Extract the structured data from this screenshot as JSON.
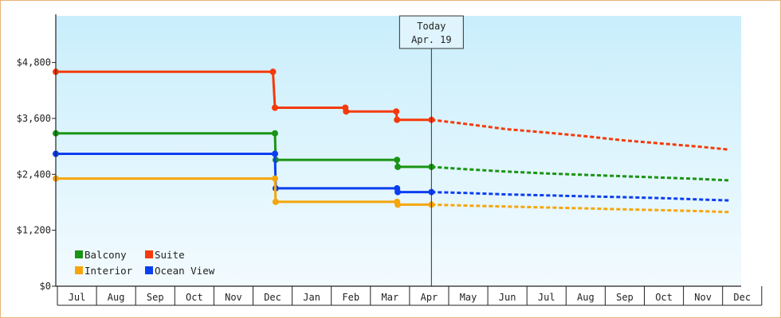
{
  "chart_data": {
    "type": "line",
    "step": true,
    "title": "",
    "xlabel": "",
    "ylabel": "",
    "ylim": [
      0,
      5800
    ],
    "y_ticks": [
      0,
      1200,
      2400,
      3600,
      4800
    ],
    "y_tick_labels": [
      "$0",
      "$1,200",
      "$2,400",
      "$3,600",
      "$4,800"
    ],
    "x_tick_labels": [
      "Jul",
      "Aug",
      "Sep",
      "Oct",
      "Nov",
      "Dec",
      "Jan",
      "Feb",
      "Mar",
      "Apr",
      "May",
      "Jun",
      "Jul",
      "Aug",
      "Sep",
      "Oct",
      "Nov",
      "Dec"
    ],
    "grid": false,
    "legend_position": "bottom-left",
    "today_marker": {
      "line1": "Today",
      "line2": "Apr. 19",
      "x": 9.6
    },
    "series": [
      {
        "name": "Suite",
        "color": "#f43a0a",
        "points": [
          [
            0,
            4600
          ],
          [
            5.55,
            4600
          ],
          [
            5.6,
            3830
          ],
          [
            7.4,
            3830
          ],
          [
            7.42,
            3750
          ],
          [
            8.7,
            3750
          ],
          [
            8.72,
            3570
          ],
          [
            9.6,
            3570
          ]
        ],
        "forecast": [
          [
            9.6,
            3570
          ],
          [
            10.6,
            3470
          ],
          [
            11.5,
            3370
          ],
          [
            12.5,
            3300
          ],
          [
            13.5,
            3220
          ],
          [
            14.5,
            3130
          ],
          [
            15.5,
            3060
          ],
          [
            16.5,
            2990
          ],
          [
            17.2,
            2930
          ]
        ]
      },
      {
        "name": "Balcony",
        "color": "#1a9414",
        "points": [
          [
            0,
            3280
          ],
          [
            5.6,
            3280
          ],
          [
            5.62,
            2710
          ],
          [
            8.72,
            2710
          ],
          [
            8.74,
            2560
          ],
          [
            9.6,
            2560
          ]
        ],
        "forecast": [
          [
            9.6,
            2560
          ],
          [
            10.5,
            2510
          ],
          [
            11.5,
            2460
          ],
          [
            12.5,
            2420
          ],
          [
            13.5,
            2390
          ],
          [
            14.5,
            2360
          ],
          [
            15.5,
            2330
          ],
          [
            16.5,
            2300
          ],
          [
            17.2,
            2270
          ]
        ]
      },
      {
        "name": "Ocean View",
        "color": "#0a3ef0",
        "points": [
          [
            0,
            2840
          ],
          [
            5.6,
            2840
          ],
          [
            5.62,
            2100
          ],
          [
            8.72,
            2100
          ],
          [
            8.74,
            2020
          ],
          [
            9.6,
            2020
          ]
        ],
        "forecast": [
          [
            9.6,
            2020
          ],
          [
            10.5,
            2000
          ],
          [
            11.5,
            1970
          ],
          [
            12.5,
            1950
          ],
          [
            13.5,
            1930
          ],
          [
            14.5,
            1910
          ],
          [
            15.5,
            1890
          ],
          [
            16.5,
            1860
          ],
          [
            17.2,
            1840
          ]
        ]
      },
      {
        "name": "Interior",
        "color": "#f6a50a",
        "points": [
          [
            0,
            2310
          ],
          [
            5.6,
            2310
          ],
          [
            5.62,
            1810
          ],
          [
            8.72,
            1810
          ],
          [
            8.74,
            1750
          ],
          [
            9.6,
            1750
          ]
        ],
        "forecast": [
          [
            9.6,
            1750
          ],
          [
            10.5,
            1730
          ],
          [
            11.5,
            1710
          ],
          [
            12.5,
            1690
          ],
          [
            13.5,
            1670
          ],
          [
            14.5,
            1650
          ],
          [
            15.5,
            1630
          ],
          [
            16.5,
            1610
          ],
          [
            17.2,
            1590
          ]
        ]
      }
    ],
    "legend": [
      {
        "name": "Balcony",
        "color": "#1a9414"
      },
      {
        "name": "Suite",
        "color": "#f43a0a"
      },
      {
        "name": "Interior",
        "color": "#f6a50a"
      },
      {
        "name": "Ocean View",
        "color": "#0a3ef0"
      }
    ]
  }
}
